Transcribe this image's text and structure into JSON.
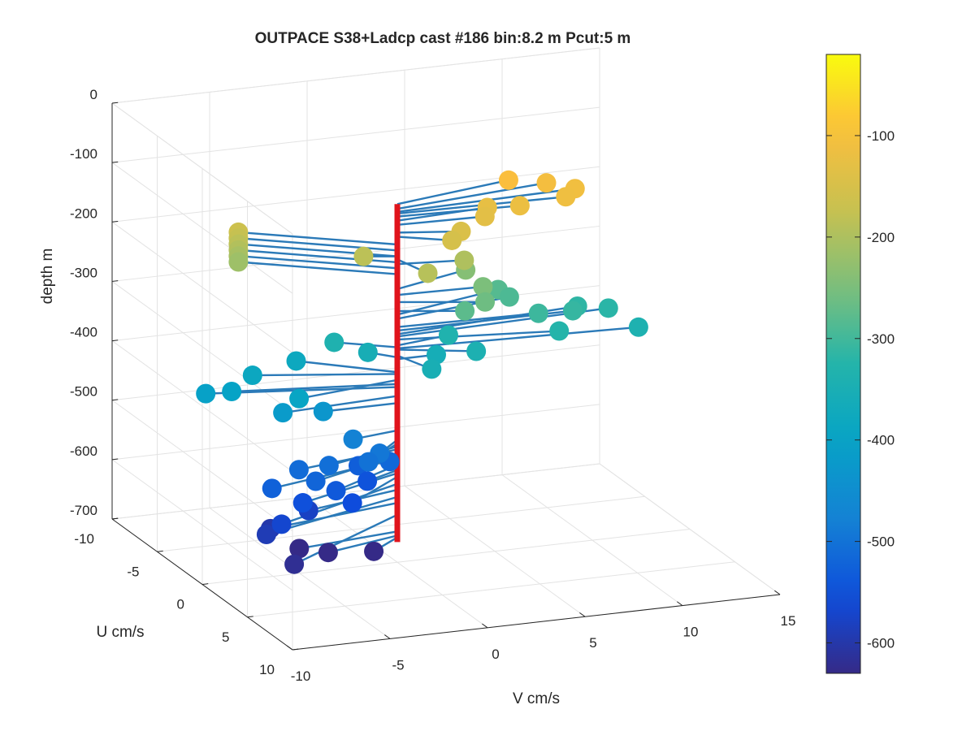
{
  "chart_data": {
    "type": "scatter3d",
    "title": "OUTPACE S38+Ladcp cast #186 bin:8.2 m  Pcut:5 m",
    "xlabel": "V cm/s",
    "ylabel": "U cm/s",
    "zlabel": "depth m",
    "xlim": [
      -10,
      15
    ],
    "ylim": [
      -10,
      10
    ],
    "zlim": [
      -700,
      0
    ],
    "xticks": [
      -10,
      -5,
      0,
      5,
      10,
      15
    ],
    "yticks": [
      -10,
      -5,
      0,
      5,
      10
    ],
    "zticks": [
      0,
      -100,
      -200,
      -300,
      -400,
      -500,
      -600,
      -700
    ],
    "grid": true,
    "view": "3d",
    "colorbar": {
      "ticks": [
        -100,
        -200,
        -300,
        -400,
        -500,
        -600
      ],
      "range": [
        -630,
        -20
      ],
      "colormap": "parula"
    },
    "vertical_line_color": "#e0141c",
    "stick_color": "#2b7ab8",
    "profile": [
      {
        "z": -97,
        "v": 6.4,
        "u": -1.5
      },
      {
        "z": -105,
        "v": 8.2,
        "u": -1.2
      },
      {
        "z": -110,
        "v": 9.3,
        "u": -0.4
      },
      {
        "z": -113,
        "v": 8.5,
        "u": 0.3
      },
      {
        "z": -118,
        "v": 6.1,
        "u": 0.4
      },
      {
        "z": -125,
        "v": 4.8,
        "u": -0.4
      },
      {
        "z": -132,
        "v": 4.4,
        "u": 0.2
      },
      {
        "z": -145,
        "v": 2.9,
        "u": 0.8
      },
      {
        "z": -152,
        "v": 2.2,
        "u": 1.3
      },
      {
        "z": -165,
        "v": -6.3,
        "u": -4.0
      },
      {
        "z": -175,
        "v": -6.3,
        "u": -4.0
      },
      {
        "z": -185,
        "v": -6.3,
        "u": -4.0
      },
      {
        "z": -195,
        "v": -6.3,
        "u": -4.0
      },
      {
        "z": -205,
        "v": -6.3,
        "u": -4.0
      },
      {
        "z": -215,
        "v": -6.3,
        "u": -4.0
      },
      {
        "z": -185,
        "v": -1.5,
        "u": -0.5
      },
      {
        "z": -190,
        "v": 0.5,
        "u": 2.3
      },
      {
        "z": -198,
        "v": 3.2,
        "u": 0.5
      },
      {
        "z": -240,
        "v": 4.2,
        "u": -1.5
      },
      {
        "z": -250,
        "v": 4.3,
        "u": 0.2
      },
      {
        "z": -262,
        "v": 3.9,
        "u": 1.3
      },
      {
        "z": -277,
        "v": 3.0,
        "u": 1.0
      },
      {
        "z": -283,
        "v": 6.0,
        "u": -1.8
      },
      {
        "z": -290,
        "v": 6.3,
        "u": -1.2
      },
      {
        "z": -304,
        "v": 7.1,
        "u": 0.3
      },
      {
        "z": -310,
        "v": 9.0,
        "u": 0.0
      },
      {
        "z": -316,
        "v": 9.7,
        "u": -1.0
      },
      {
        "z": -320,
        "v": 11.1,
        "u": -0.6
      },
      {
        "z": -325,
        "v": 7.7,
        "u": 1.3
      },
      {
        "z": -335,
        "v": 2.9,
        "u": -0.6
      },
      {
        "z": -355,
        "v": -1.0,
        "u": -1.1
      },
      {
        "z": -338,
        "v": -2.5,
        "u": -1.6
      },
      {
        "z": -352,
        "v": 0.7,
        "u": 2.3
      },
      {
        "z": -342,
        "v": 3.4,
        "u": 1.4
      },
      {
        "z": -340,
        "v": 12.0,
        "u": 0.8
      },
      {
        "z": -358,
        "v": 2.0,
        "u": 0.0
      },
      {
        "z": -380,
        "v": -3.8,
        "u": -3.0
      },
      {
        "z": -383,
        "v": -6.5,
        "u": -2.0
      },
      {
        "z": -393,
        "v": -5.5,
        "u": 1.0
      },
      {
        "z": -400,
        "v": -7.8,
        "u": -1.5
      },
      {
        "z": -405,
        "v": -8.9,
        "u": -2.0
      },
      {
        "z": -420,
        "v": -6.1,
        "u": 0.5
      },
      {
        "z": -432,
        "v": -3.8,
        "u": 0.0
      },
      {
        "z": -478,
        "v": -2.5,
        "u": 0.5
      },
      {
        "z": -494,
        "v": -1.6,
        "u": 1.5
      },
      {
        "z": -500,
        "v": -2.4,
        "u": 2.0
      },
      {
        "z": -505,
        "v": -4.2,
        "u": 1.5
      },
      {
        "z": -510,
        "v": -5.6,
        "u": 1.2
      },
      {
        "z": -515,
        "v": -0.9,
        "u": 1.1
      },
      {
        "z": -520,
        "v": -5.2,
        "u": 2.2
      },
      {
        "z": -525,
        "v": -7.4,
        "u": 2.1
      },
      {
        "z": -530,
        "v": -2.0,
        "u": 0.0
      },
      {
        "z": -536,
        "v": -4.3,
        "u": 2.5
      },
      {
        "z": -545,
        "v": -2.0,
        "u": 1.0
      },
      {
        "z": -550,
        "v": -6.0,
        "u": 2.5
      },
      {
        "z": -556,
        "v": -3.6,
        "u": 2.8
      },
      {
        "z": -568,
        "v": -7.6,
        "u": 3.6
      },
      {
        "z": -578,
        "v": -5.2,
        "u": 1.4
      },
      {
        "z": -590,
        "v": -8.1,
        "u": 3.0
      },
      {
        "z": -600,
        "v": -7.2,
        "u": 1.5
      },
      {
        "z": -620,
        "v": -7.6,
        "u": 5.0
      },
      {
        "z": -648,
        "v": -5.4,
        "u": 0.8
      },
      {
        "z": -655,
        "v": -4.1,
        "u": 1.2
      },
      {
        "z": -658,
        "v": -1.9,
        "u": 1.5
      }
    ]
  }
}
